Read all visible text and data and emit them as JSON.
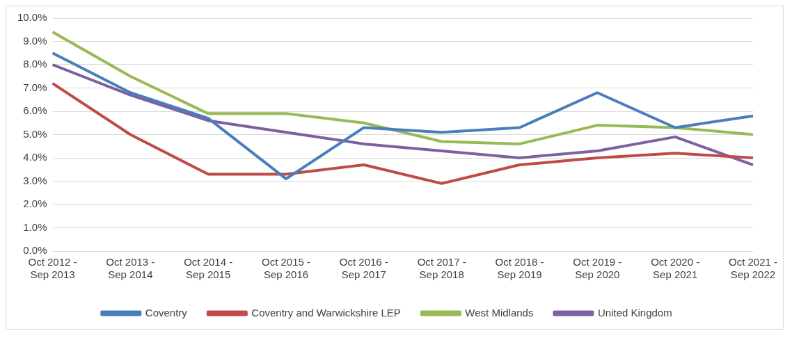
{
  "chart_data": {
    "type": "line",
    "categories": [
      "Oct 2012 - Sep 2013",
      "Oct 2013 - Sep 2014",
      "Oct 2014 - Sep 2015",
      "Oct 2015 - Sep 2016",
      "Oct 2016 - Sep 2017",
      "Oct 2017 - Sep 2018",
      "Oct 2018 - Sep 2019",
      "Oct 2019 - Sep 2020",
      "Oct 2020 - Sep 2021",
      "Oct 2021 - Sep 2022"
    ],
    "series": [
      {
        "name": "Coventry",
        "color": "#4a7ebb",
        "values": [
          8.5,
          6.8,
          5.7,
          3.1,
          5.3,
          5.1,
          5.3,
          6.8,
          5.3,
          5.8
        ]
      },
      {
        "name": "Coventry and Warwickshire LEP",
        "color": "#be4b48",
        "values": [
          7.2,
          5.0,
          3.3,
          3.3,
          3.7,
          2.9,
          3.7,
          4.0,
          4.2,
          4.0
        ]
      },
      {
        "name": "West Midlands",
        "color": "#98b954",
        "values": [
          9.4,
          7.5,
          5.9,
          5.9,
          5.5,
          4.7,
          4.6,
          5.4,
          5.3,
          5.0
        ]
      },
      {
        "name": "United Kingdom",
        "color": "#7d60a0",
        "values": [
          8.0,
          6.7,
          5.6,
          5.1,
          4.6,
          4.3,
          4.0,
          4.3,
          4.9,
          3.7
        ]
      }
    ],
    "ylim": [
      0,
      10
    ],
    "yticks": [
      {
        "value": 0,
        "label": "0.0%"
      },
      {
        "value": 1,
        "label": "1.0%"
      },
      {
        "value": 2,
        "label": "2.0%"
      },
      {
        "value": 3,
        "label": "3.0%"
      },
      {
        "value": 4,
        "label": "4.0%"
      },
      {
        "value": 5,
        "label": "5.0%"
      },
      {
        "value": 6,
        "label": "6.0%"
      },
      {
        "value": 7,
        "label": "7.0%"
      },
      {
        "value": 8,
        "label": "8.0%"
      },
      {
        "value": 9,
        "label": "9.0%"
      },
      {
        "value": 10,
        "label": "10.0%"
      }
    ],
    "grid": "y",
    "legend": "bottom",
    "marker": "none",
    "line_style": "solid"
  }
}
